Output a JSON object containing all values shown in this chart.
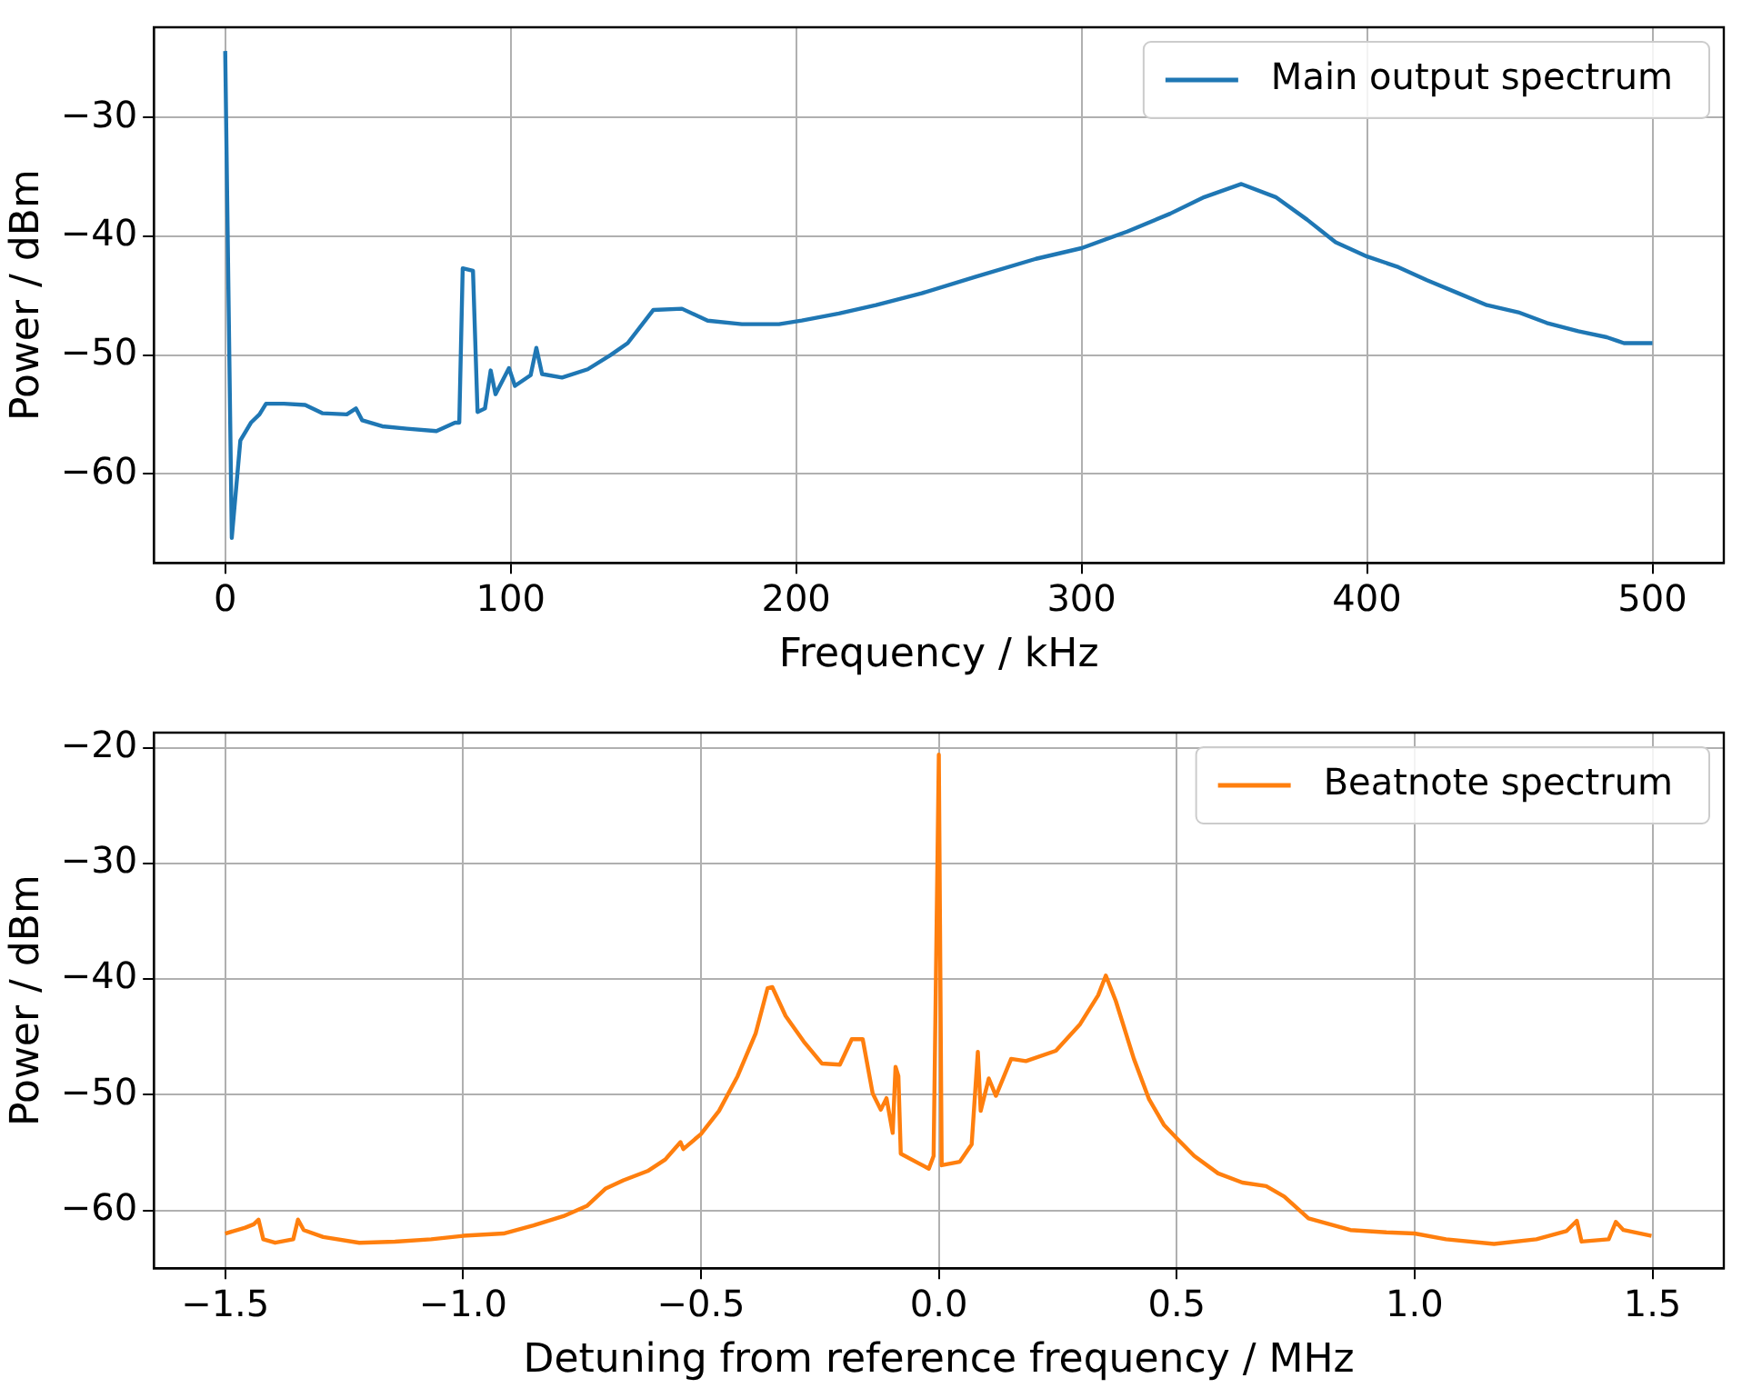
{
  "chart_data": [
    {
      "type": "line",
      "xlabel": "Frequency / kHz",
      "ylabel": "Power / dBm",
      "xlim": [
        -25,
        525
      ],
      "ylim": [
        -67.5,
        -22.4
      ],
      "xticks": [
        0,
        100,
        200,
        300,
        400,
        500
      ],
      "yticks": [
        {
          "value": -60,
          "label": "−60"
        },
        {
          "value": -50,
          "label": "−50"
        },
        {
          "value": -40,
          "label": "−40"
        },
        {
          "value": -30,
          "label": "−30"
        }
      ],
      "grid": true,
      "legend": "top right",
      "marker": "none",
      "line_style": "solid",
      "x": [
        0,
        2.3,
        5.3,
        9,
        12,
        14.3,
        20.6,
        28,
        34,
        42.6,
        45.8,
        48,
        55,
        63.7,
        74,
        80.5,
        82,
        83.2,
        86.8,
        88.4,
        91,
        93,
        94.7,
        99.4,
        101.5,
        107,
        109,
        111,
        118,
        127,
        135,
        141,
        150,
        160,
        169,
        181,
        194,
        202,
        215,
        228,
        244,
        263,
        284,
        300,
        316,
        331,
        343,
        356,
        368,
        379,
        389,
        400,
        411,
        421,
        432,
        442,
        453,
        463,
        474,
        484,
        490,
        500
      ],
      "series": [
        {
          "name": "Main output spectrum",
          "color": "#1f77b4",
          "values": [
            -24.4,
            -65.4,
            -57.2,
            -55.7,
            -55,
            -54.1,
            -54.1,
            -54.2,
            -54.9,
            -55,
            -54.5,
            -55.5,
            -56,
            -56.2,
            -56.4,
            -55.7,
            -55.7,
            -42.7,
            -42.9,
            -54.8,
            -54.5,
            -51.3,
            -53.3,
            -51.1,
            -52.6,
            -51.7,
            -49.4,
            -51.6,
            -51.9,
            -51.2,
            -50,
            -49,
            -46.2,
            -46.1,
            -47.1,
            -47.4,
            -47.4,
            -47.1,
            -46.5,
            -45.8,
            -44.8,
            -43.4,
            -41.9,
            -41,
            -39.6,
            -38.1,
            -36.7,
            -35.6,
            -36.7,
            -38.6,
            -40.5,
            -41.7,
            -42.6,
            -43.7,
            -44.8,
            -45.8,
            -46.4,
            -47.3,
            -48,
            -48.5,
            -49,
            -49
          ]
        }
      ]
    },
    {
      "type": "line",
      "xlabel": "Detuning from reference frequency / MHz",
      "ylabel": "Power / dBm",
      "xlim": [
        -1.65,
        1.65
      ],
      "ylim": [
        -65,
        -18.7
      ],
      "xticks": [
        {
          "value": -1.5,
          "label": "−1.5"
        },
        {
          "value": -1,
          "label": "−1.0"
        },
        {
          "value": -0.5,
          "label": "−0.5"
        },
        {
          "value": 0,
          "label": "0.0"
        },
        {
          "value": 0.5,
          "label": "0.5"
        },
        {
          "value": 1,
          "label": "1.0"
        },
        {
          "value": 1.5,
          "label": "1.5"
        }
      ],
      "yticks": [
        {
          "value": -60,
          "label": "−60"
        },
        {
          "value": -50,
          "label": "−50"
        },
        {
          "value": -40,
          "label": "−40"
        },
        {
          "value": -30,
          "label": "−30"
        },
        {
          "value": -20,
          "label": "−20"
        }
      ],
      "grid": true,
      "legend": "top right",
      "marker": "none",
      "line_style": "solid",
      "x": [
        -1.5,
        -1.458,
        -1.44,
        -1.43,
        -1.42,
        -1.395,
        -1.357,
        -1.347,
        -1.335,
        -1.294,
        -1.218,
        -1.143,
        -1.067,
        -1,
        -0.915,
        -0.852,
        -0.789,
        -0.739,
        -0.7,
        -0.663,
        -0.612,
        -0.575,
        -0.543,
        -0.537,
        -0.5,
        -0.462,
        -0.423,
        -0.385,
        -0.36,
        -0.35,
        -0.322,
        -0.284,
        -0.246,
        -0.208,
        -0.183,
        -0.16,
        -0.139,
        -0.122,
        -0.11,
        -0.097,
        -0.091,
        -0.085,
        -0.08,
        -0.044,
        -0.021,
        -0.011,
        0,
        0.006,
        0.044,
        0.069,
        0.082,
        0.088,
        0.105,
        0.12,
        0.152,
        0.183,
        0.246,
        0.297,
        0.335,
        0.351,
        0.372,
        0.41,
        0.442,
        0.473,
        0.501,
        0.537,
        0.587,
        0.638,
        0.688,
        0.726,
        0.777,
        0.865,
        0.941,
        1,
        1.066,
        1.167,
        1.256,
        1.319,
        1.341,
        1.351,
        1.408,
        1.423,
        1.439,
        1.498
      ],
      "series": [
        {
          "name": "Beatnote spectrum",
          "color": "#ff7f0e",
          "values": [
            -62,
            -61.5,
            -61.2,
            -60.8,
            -62.5,
            -62.8,
            -62.5,
            -60.8,
            -61.7,
            -62.3,
            -62.8,
            -62.7,
            -62.5,
            -62.2,
            -62,
            -61.3,
            -60.5,
            -59.6,
            -58.1,
            -57.4,
            -56.6,
            -55.6,
            -54.1,
            -54.7,
            -53.4,
            -51.4,
            -48.4,
            -44.7,
            -40.8,
            -40.7,
            -43.2,
            -45.4,
            -47.3,
            -47.4,
            -45.2,
            -45.2,
            -49.9,
            -51.3,
            -50.3,
            -53.3,
            -47.6,
            -48.4,
            -55.1,
            -55.9,
            -56.4,
            -55.3,
            -20.6,
            -56.1,
            -55.8,
            -54.3,
            -46.3,
            -51.4,
            -48.6,
            -50.1,
            -46.9,
            -47.1,
            -46.2,
            -43.9,
            -41.4,
            -39.7,
            -41.9,
            -46.9,
            -50.4,
            -52.6,
            -53.8,
            -55.3,
            -56.8,
            -57.6,
            -57.9,
            -58.8,
            -60.7,
            -61.7,
            -61.9,
            -62,
            -62.5,
            -62.9,
            -62.5,
            -61.8,
            -60.9,
            -62.7,
            -62.5,
            -61,
            -61.7,
            -62.2
          ]
        }
      ]
    }
  ]
}
